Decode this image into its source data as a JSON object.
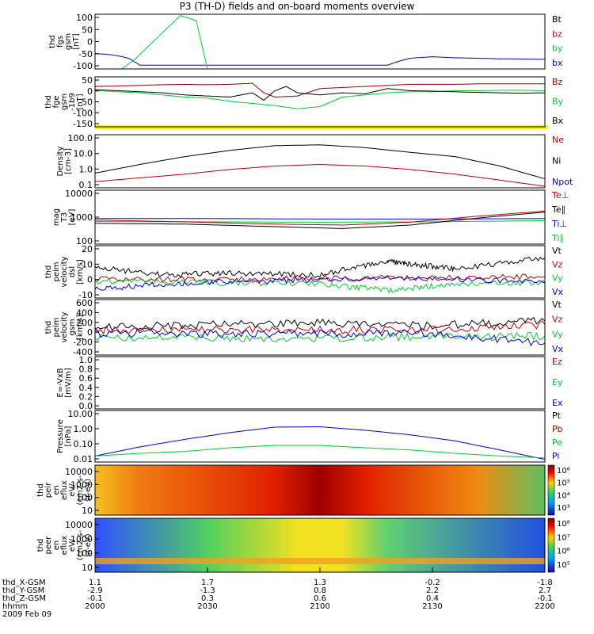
{
  "title": "P3 (TH-D) fields and on-board moments overview",
  "date_label": "2009 Feb 09",
  "colors": {
    "black": "#000000",
    "red": "#c00000",
    "green": "#00cc33",
    "blue": "#0000dd",
    "yellow": "#ffee00",
    "darkred": "#8b0000"
  },
  "chart_data": [
    {
      "type": "line",
      "panel": "fgs",
      "ylabel": [
        "thd",
        "fgs",
        "gsm",
        "[nT]"
      ],
      "yticks": [
        "100",
        "50",
        "0",
        "-50",
        "-100"
      ],
      "ylim": [
        -110,
        105
      ],
      "legend": [
        {
          "text": "Bt",
          "color": "black"
        },
        {
          "text": "bz",
          "color": "red"
        },
        {
          "text": "by",
          "color": "green"
        },
        {
          "text": "bx",
          "color": "blue"
        }
      ],
      "series": [
        {
          "name": "bx",
          "color": "blue",
          "x": [
            2000,
            2005,
            2010,
            2015,
            2020,
            2130,
            2135,
            2140,
            2150,
            2160,
            2170,
            2180,
            2200
          ],
          "y": [
            -50,
            -52,
            -58,
            -68,
            -95,
            -95,
            -80,
            -68,
            -62,
            -66,
            -68,
            -70,
            -72
          ]
        },
        {
          "name": "by",
          "color": "green",
          "x": [
            2012,
            2018,
            2025,
            2032,
            2038,
            2045,
            2050
          ],
          "y": [
            -110,
            -70,
            -10,
            50,
            100,
            80,
            -110
          ]
        }
      ]
    },
    {
      "type": "line",
      "panel": "fge",
      "ylabel": [
        "thd",
        "fge",
        "gsm",
        "-1b9",
        "[nT]"
      ],
      "yticks": [
        "50",
        "0",
        "-50",
        "-100",
        "-150"
      ],
      "ylim": [
        -180,
        55
      ],
      "legend": [
        {
          "text": "Bz",
          "color": "darkred"
        },
        {
          "text": "By",
          "color": "green"
        },
        {
          "text": "Bx",
          "color": "black"
        }
      ],
      "series": [
        {
          "name": "Bz",
          "color": "darkred",
          "x": [
            2000,
            2010,
            2020,
            2030,
            2040,
            2050,
            2060,
            2070,
            2075,
            2080,
            2090,
            2100,
            2110,
            2120,
            2130,
            2140,
            2150,
            2160,
            2170,
            2180,
            2190,
            2200
          ],
          "y": [
            10,
            12,
            15,
            18,
            20,
            18,
            20,
            25,
            -20,
            -40,
            -35,
            0,
            5,
            10,
            15,
            20,
            20,
            20,
            22,
            22,
            22,
            22
          ]
        },
        {
          "name": "By",
          "color": "green",
          "x": [
            2000,
            2010,
            2020,
            2030,
            2040,
            2050,
            2060,
            2070,
            2080,
            2090,
            2100,
            2110,
            2120,
            2130,
            2140,
            2150,
            2160,
            2170,
            2180,
            2190,
            2200
          ],
          "y": [
            -10,
            -15,
            -20,
            -30,
            -40,
            -45,
            -60,
            -70,
            -80,
            -95,
            -85,
            -40,
            -30,
            -20,
            -15,
            -15,
            -10,
            -10,
            -8,
            -8,
            -10
          ]
        },
        {
          "name": "Bx",
          "color": "black",
          "x": [
            2000,
            2010,
            2020,
            2030,
            2040,
            2050,
            2060,
            2070,
            2075,
            2080,
            2085,
            2090,
            2100,
            2110,
            2120,
            2130,
            2140,
            2150,
            2160,
            2170,
            2180,
            2190,
            2200
          ],
          "y": [
            -5,
            -10,
            -15,
            -20,
            -30,
            -35,
            -40,
            -20,
            -55,
            -10,
            10,
            -20,
            -30,
            -20,
            -25,
            0,
            -10,
            -12,
            -15,
            -18,
            -20,
            -22,
            -20
          ]
        }
      ]
    },
    {
      "type": "line",
      "panel": "density",
      "log": true,
      "ylabel": [
        "Density",
        "[cm-3]"
      ],
      "yticks": [
        "100.0",
        "10.0",
        "1.0",
        "0.1"
      ],
      "ylim": [
        0.08,
        200
      ],
      "legend": [
        {
          "text": "Ne",
          "color": "red"
        },
        {
          "text": "Ni",
          "color": "black"
        },
        {
          "text": "Npot",
          "color": "blue"
        }
      ],
      "series": [
        {
          "name": "Ni",
          "color": "black",
          "x": [
            2000,
            2020,
            2040,
            2060,
            2080,
            2100,
            2120,
            2140,
            2160,
            2180,
            2200
          ],
          "y": [
            0.7,
            2.5,
            8,
            20,
            40,
            45,
            30,
            15,
            8,
            2,
            0.3
          ]
        },
        {
          "name": "Ne",
          "color": "red",
          "x": [
            2000,
            2020,
            2040,
            2060,
            2080,
            2100,
            2120,
            2140,
            2160,
            2180,
            2200
          ],
          "y": [
            0.2,
            0.35,
            0.6,
            1.2,
            2.0,
            2.5,
            2.0,
            1.2,
            0.6,
            0.25,
            0.1
          ]
        }
      ]
    },
    {
      "type": "line",
      "panel": "temperature",
      "log": true,
      "ylabel": [
        "mag",
        "T3",
        "[eV]"
      ],
      "yticks": [
        "10000",
        "1000",
        "100"
      ],
      "ylim": [
        20,
        10000
      ],
      "legend": [
        {
          "text": "Te⊥",
          "color": "red"
        },
        {
          "text": "Te∥",
          "color": "black"
        },
        {
          "text": "Ti⊥",
          "color": "blue"
        },
        {
          "text": "Ti∥",
          "color": "green"
        }
      ],
      "series": [
        {
          "name": "Ti⊥",
          "color": "blue",
          "x": [
            2000,
            2050,
            2100,
            2150,
            2200
          ],
          "y": [
            380,
            380,
            360,
            360,
            380
          ]
        },
        {
          "name": "Ti∥",
          "color": "green",
          "x": [
            2000,
            2050,
            2100,
            2150,
            2200
          ],
          "y": [
            270,
            260,
            250,
            260,
            300
          ]
        },
        {
          "name": "Te⊥",
          "color": "red",
          "x": [
            2000,
            2040,
            2080,
            2110,
            2140,
            2170,
            2200
          ],
          "y": [
            320,
            260,
            200,
            180,
            250,
            500,
            900
          ]
        },
        {
          "name": "Te∥",
          "color": "black",
          "x": [
            2000,
            2040,
            2080,
            2110,
            2140,
            2170,
            2200
          ],
          "y": [
            220,
            200,
            150,
            120,
            180,
            400,
            800
          ]
        }
      ]
    },
    {
      "type": "line",
      "panel": "peim_velocity_dsl",
      "ylabel": [
        "thd",
        "peim",
        "velocity",
        "dsl",
        "[km/s]"
      ],
      "yticks": [
        "20",
        "10",
        "0",
        "-10"
      ],
      "ylim": [
        -12,
        22
      ],
      "legend": [
        {
          "text": "Vt",
          "color": "black"
        },
        {
          "text": "Vz",
          "color": "red"
        },
        {
          "text": "Vy",
          "color": "green"
        },
        {
          "text": "Vx",
          "color": "blue"
        }
      ],
      "series": [
        {
          "name": "Vt",
          "color": "black",
          "x": [
            2000,
            2030,
            2060,
            2100,
            2130,
            2140,
            2160,
            2200
          ],
          "y": [
            8,
            3,
            4,
            3,
            12,
            10,
            7,
            14
          ]
        },
        {
          "name": "Vz",
          "color": "red",
          "x": [
            2000,
            2050,
            2100,
            2150,
            2200
          ],
          "y": [
            0,
            0,
            1,
            1,
            2
          ]
        },
        {
          "name": "Vy",
          "color": "green",
          "x": [
            2000,
            2050,
            2100,
            2130,
            2160,
            2200
          ],
          "y": [
            -1,
            -2,
            -3,
            -7,
            -3,
            -2
          ]
        },
        {
          "name": "Vx",
          "color": "blue",
          "x": [
            2000,
            2030,
            2060,
            2100,
            2150,
            2200
          ],
          "y": [
            -6,
            -3,
            -1,
            0,
            1,
            -2
          ]
        }
      ]
    },
    {
      "type": "line",
      "panel": "peim_velocity_gsm",
      "ylabel": [
        "thd",
        "peim",
        "velocity",
        "gsm",
        "[km/s]"
      ],
      "yticks": [
        "600",
        "400",
        "200",
        "0",
        "-200",
        "-400"
      ],
      "ylim": [
        -420,
        620
      ],
      "legend": [
        {
          "text": "Vt",
          "color": "black"
        },
        {
          "text": "Vz",
          "color": "red"
        },
        {
          "text": "Vy",
          "color": "green"
        },
        {
          "text": "Vx",
          "color": "blue"
        }
      ],
      "series": [
        {
          "name": "Vt",
          "color": "black",
          "x": [
            2000,
            2050,
            2100,
            2150,
            2200
          ],
          "y": [
            100,
            150,
            180,
            130,
            220
          ]
        },
        {
          "name": "Vz",
          "color": "red",
          "x": [
            2000,
            2050,
            2100,
            2150,
            2200
          ],
          "y": [
            50,
            60,
            50,
            60,
            150
          ]
        },
        {
          "name": "Vy",
          "color": "green",
          "x": [
            2000,
            2050,
            2100,
            2150,
            2200
          ],
          "y": [
            -80,
            -100,
            -100,
            -80,
            -60
          ]
        },
        {
          "name": "Vx",
          "color": "blue",
          "x": [
            2000,
            2050,
            2100,
            2150,
            2200
          ],
          "y": [
            -20,
            -20,
            -20,
            -10,
            -200
          ]
        }
      ]
    },
    {
      "type": "line",
      "panel": "efield",
      "ylabel": [
        "E=-VxB",
        "[mV/m]"
      ],
      "yticks": [
        "1.0",
        "0.8",
        "0.6",
        "0.4",
        "0.2",
        "0.0"
      ],
      "ylim": [
        0,
        1
      ],
      "legend": [
        {
          "text": "Ez",
          "color": "red"
        },
        {
          "text": "Ey",
          "color": "green"
        },
        {
          "text": "Ex",
          "color": "blue"
        }
      ],
      "series": []
    },
    {
      "type": "line",
      "panel": "pressure",
      "log": true,
      "ylabel": [
        "Pressure",
        "[nPa]"
      ],
      "yticks": [
        "10.00",
        "1.00",
        "0.10",
        "0.01"
      ],
      "ylim": [
        0.008,
        20
      ],
      "legend": [
        {
          "text": "Pt",
          "color": "black"
        },
        {
          "text": "Pb",
          "color": "red"
        },
        {
          "text": "Pe",
          "color": "green"
        },
        {
          "text": "Pi",
          "color": "blue"
        }
      ],
      "series": [
        {
          "name": "Pi",
          "color": "blue",
          "x": [
            2000,
            2020,
            2040,
            2060,
            2080,
            2100,
            2120,
            2140,
            2160,
            2180,
            2200
          ],
          "y": [
            0.02,
            0.08,
            0.25,
            0.7,
            1.6,
            1.7,
            1.0,
            0.5,
            0.2,
            0.05,
            0.012
          ]
        },
        {
          "name": "Pe",
          "color": "green",
          "x": [
            2000,
            2020,
            2040,
            2060,
            2080,
            2100,
            2120,
            2140,
            2160,
            2180,
            2200
          ],
          "y": [
            0.02,
            0.03,
            0.04,
            0.07,
            0.1,
            0.1,
            0.07,
            0.05,
            0.03,
            0.02,
            0.015
          ]
        }
      ]
    },
    {
      "type": "heatmap",
      "panel": "peir",
      "ylabel": [
        "thd",
        "peir",
        "en",
        "eflux",
        "eV/",
        "(cm2-s-",
        "sr-eV)"
      ],
      "yticks": [
        "10000",
        "1000",
        "100",
        "10"
      ],
      "colorbar_ticks": [
        "10⁶",
        "10⁵",
        "10⁴",
        "10³"
      ]
    },
    {
      "type": "heatmap",
      "panel": "peer",
      "ylabel": [
        "thd",
        "peer",
        "en",
        "eflux",
        "eV/",
        "(cm2-s-",
        "sr-eV)"
      ],
      "yticks": [
        "10000",
        "1000",
        "100",
        "10"
      ],
      "colorbar_ticks": [
        "10⁸",
        "10⁷",
        "10⁶",
        "10⁵"
      ]
    }
  ],
  "x_axis": {
    "rows": [
      {
        "label": "thd_X-GSM",
        "values": [
          "1.1",
          "1.7",
          "1.3",
          "-0.2",
          "-1.8"
        ]
      },
      {
        "label": "thd_Y-GSM",
        "values": [
          "-2.9",
          "-1.3",
          "0.8",
          "2.2",
          "2.7"
        ]
      },
      {
        "label": "thd_Z-GSM",
        "values": [
          "-0.1",
          "0.3",
          "0.6",
          "0.4",
          "-0.1"
        ]
      },
      {
        "label": "hhmm",
        "values": [
          "2000",
          "2030",
          "2100",
          "2130",
          "2200"
        ]
      }
    ],
    "xlim": [
      2000,
      2200
    ]
  }
}
